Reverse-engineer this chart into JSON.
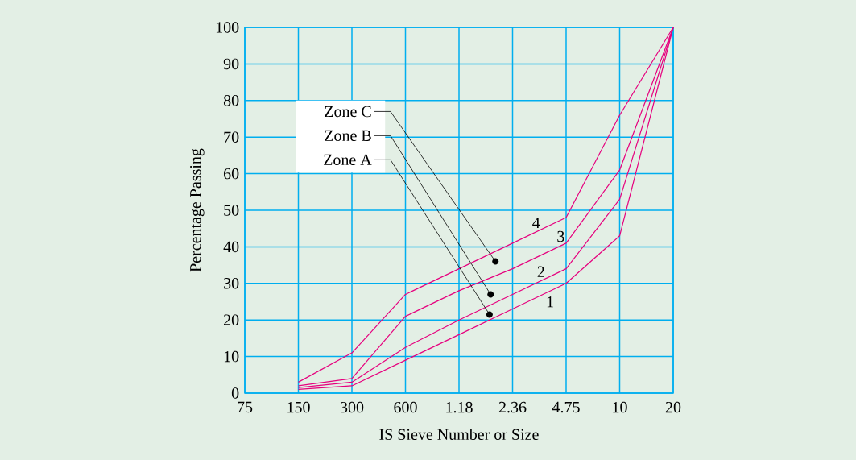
{
  "chart_data": {
    "type": "line",
    "xlabel": "IS Sieve Number or Size",
    "ylabel": "Percentage Passing",
    "categories": [
      "75",
      "150",
      "300",
      "600",
      "1.18",
      "2.36",
      "4.75",
      "10",
      "20"
    ],
    "series": [
      {
        "name": "1",
        "color": "#e6007e",
        "values": [
          null,
          1,
          2,
          9,
          16,
          23,
          30,
          43,
          100
        ]
      },
      {
        "name": "2",
        "color": "#e6007e",
        "values": [
          null,
          1.5,
          3,
          12.5,
          20,
          27,
          34,
          53,
          100
        ]
      },
      {
        "name": "3",
        "color": "#e6007e",
        "values": [
          null,
          2,
          4,
          21,
          28,
          34,
          41,
          61,
          100
        ]
      },
      {
        "name": "4",
        "color": "#e6007e",
        "values": [
          null,
          3,
          11,
          27,
          34,
          41,
          48,
          76,
          100
        ]
      }
    ],
    "ylim": [
      0,
      100
    ],
    "yticks": [
      0,
      10,
      20,
      30,
      40,
      50,
      60,
      70,
      80,
      90,
      100
    ],
    "grid": true,
    "marker": "none",
    "line_style": "solid",
    "annotations": [
      "Zone C",
      "Zone B",
      "Zone A"
    ]
  }
}
